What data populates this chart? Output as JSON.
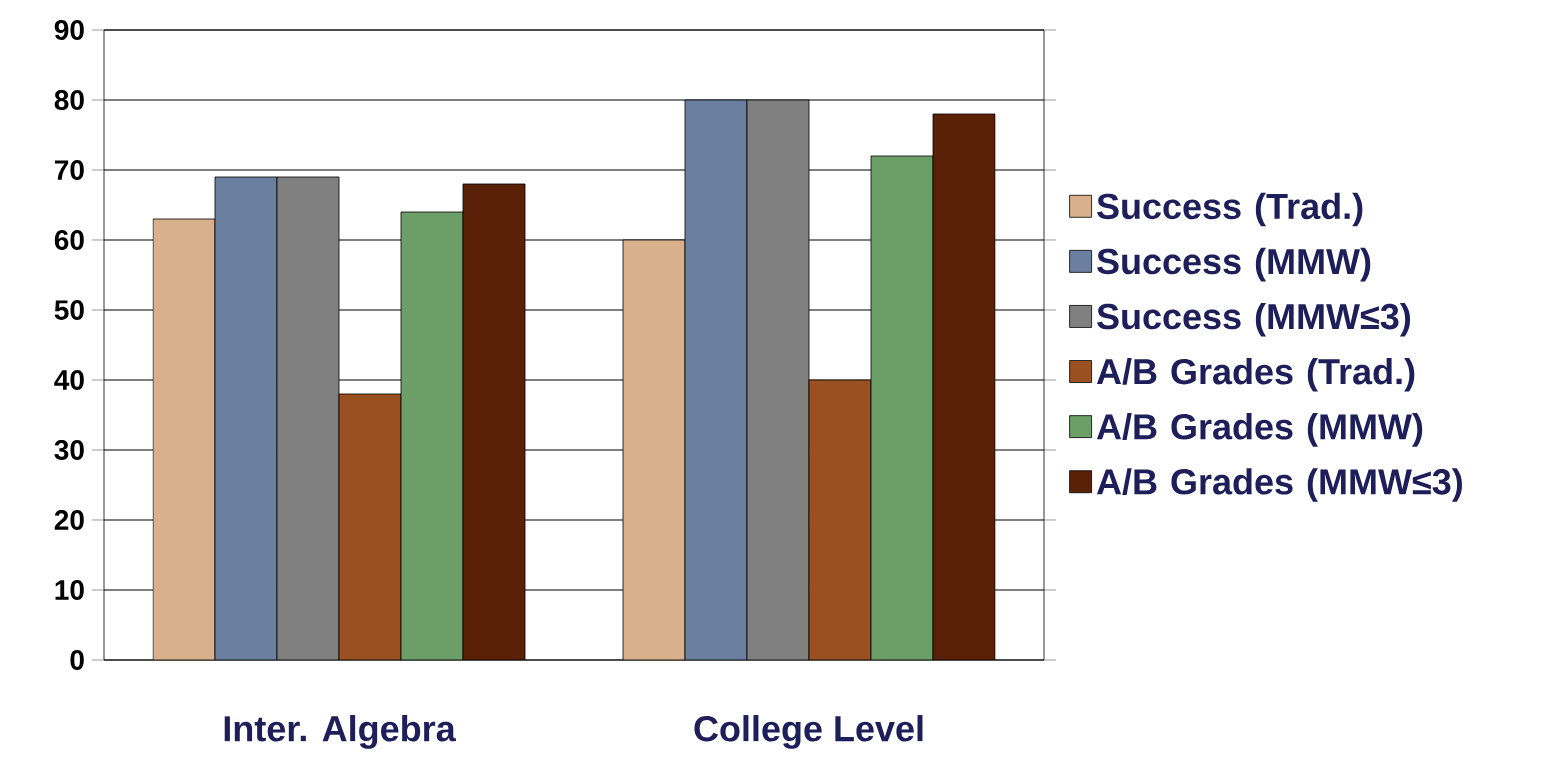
{
  "chart_data": {
    "type": "bar",
    "categories": [
      "Inter. Algebra",
      "College Level"
    ],
    "series": [
      {
        "name": "Success (Trad.)",
        "color": "#d9b08c",
        "values": [
          63,
          60
        ]
      },
      {
        "name": "Success (MMW)",
        "color": "#6b7fa0",
        "values": [
          69,
          80
        ]
      },
      {
        "name": "Success (MMW≤3)",
        "color": "#808080",
        "values": [
          69,
          80
        ]
      },
      {
        "name": "A/B Grades (Trad.)",
        "color": "#9a5020",
        "values": [
          38,
          40
        ]
      },
      {
        "name": "A/B Grades (MMW)",
        "color": "#6c9f68",
        "values": [
          64,
          72
        ]
      },
      {
        "name": "A/B Grades (MMW≤3)",
        "color": "#5a2008",
        "values": [
          68,
          78
        ]
      }
    ],
    "ylim": [
      0,
      90
    ],
    "yticks": [
      0,
      10,
      20,
      30,
      40,
      50,
      60,
      70,
      80,
      90
    ],
    "grid": "y",
    "legend": "right"
  }
}
